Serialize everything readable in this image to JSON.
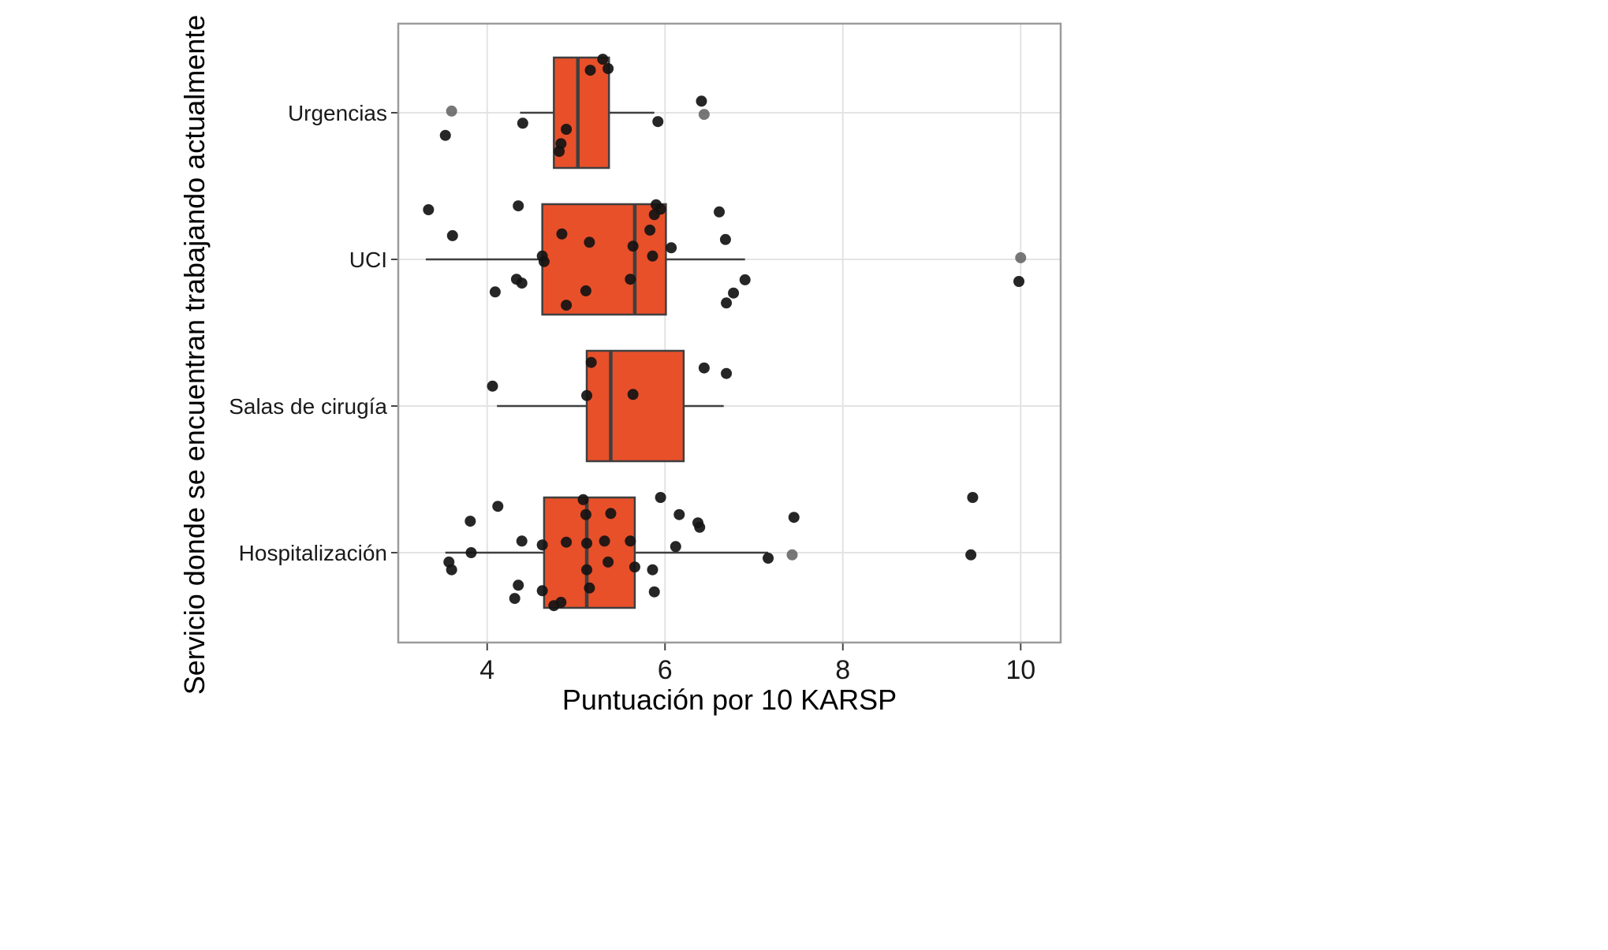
{
  "chart_data": {
    "type": "boxplot",
    "orientation": "horizontal",
    "title": "",
    "xlabel": "Puntuación por 10 KARSP",
    "ylabel": "Servicio donde se encuentran trabajando actualmente",
    "xlim": [
      3.0,
      10.45
    ],
    "xticks": [
      4,
      6,
      8,
      10
    ],
    "grid": true,
    "legend": false,
    "colors": {
      "box_fill": "#E8502A",
      "box_stroke": "#3f3f3f",
      "point": "#141414",
      "point_muted": "#5f5f5f",
      "grid": "#e3e3e3",
      "panel_border": "#9b9b9b",
      "tick": "#444444",
      "text": "#1a1a1a"
    },
    "categories": [
      {
        "name": "Urgencias",
        "stats": {
          "whisker_low": 4.37,
          "q1": 4.75,
          "median": 5.02,
          "q3": 5.37,
          "whisker_high": 5.88
        },
        "points": [
          [
            5.3,
            -0.97
          ],
          [
            5.16,
            -0.77
          ],
          [
            5.36,
            -0.8
          ],
          [
            6.41,
            -0.21
          ],
          [
            6.44,
            0.03,
            "m"
          ],
          [
            3.6,
            -0.03,
            "m"
          ],
          [
            3.53,
            0.41
          ],
          [
            4.4,
            0.19
          ],
          [
            5.92,
            0.16
          ],
          [
            4.83,
            0.56
          ],
          [
            4.89,
            0.3
          ],
          [
            4.81,
            0.7
          ]
        ]
      },
      {
        "name": "UCI",
        "stats": {
          "whisker_low": 3.31,
          "q1": 4.62,
          "median": 5.66,
          "q3": 6.01,
          "whisker_high": 6.9
        },
        "points": [
          [
            3.34,
            -0.9
          ],
          [
            3.61,
            -0.43
          ],
          [
            4.35,
            -0.97
          ],
          [
            4.09,
            0.59
          ],
          [
            4.33,
            0.36
          ],
          [
            4.39,
            0.43
          ],
          [
            4.62,
            -0.06
          ],
          [
            4.64,
            0.04
          ],
          [
            4.84,
            -0.46
          ],
          [
            4.89,
            0.83
          ],
          [
            5.11,
            0.57
          ],
          [
            5.15,
            -0.31
          ],
          [
            5.61,
            0.36
          ],
          [
            5.64,
            -0.24
          ],
          [
            5.83,
            -0.53
          ],
          [
            5.86,
            -0.06
          ],
          [
            5.88,
            -0.81
          ],
          [
            5.9,
            -0.99
          ],
          [
            5.95,
            -0.91
          ],
          [
            6.07,
            -0.21
          ],
          [
            6.61,
            -0.86
          ],
          [
            6.68,
            -0.36
          ],
          [
            6.77,
            0.61
          ],
          [
            6.69,
            0.79
          ],
          [
            6.9,
            0.37
          ],
          [
            10.0,
            -0.03,
            "m"
          ],
          [
            9.98,
            0.4
          ]
        ]
      },
      {
        "name": "Salas de cirugía",
        "stats": {
          "whisker_low": 4.11,
          "q1": 5.12,
          "median": 5.39,
          "q3": 6.21,
          "whisker_high": 6.66
        },
        "points": [
          [
            4.06,
            -0.36
          ],
          [
            5.17,
            -0.79
          ],
          [
            5.12,
            -0.19
          ],
          [
            5.64,
            -0.21
          ],
          [
            6.44,
            -0.69
          ],
          [
            6.69,
            -0.59
          ]
        ]
      },
      {
        "name": "Hospitalización",
        "stats": {
          "whisker_low": 3.53,
          "q1": 4.64,
          "median": 5.12,
          "q3": 5.66,
          "whisker_high": 7.16
        },
        "points": [
          [
            4.12,
            -0.84
          ],
          [
            3.81,
            -0.57
          ],
          [
            3.82,
            0.0
          ],
          [
            3.57,
            0.17
          ],
          [
            3.6,
            0.31
          ],
          [
            4.31,
            0.83
          ],
          [
            4.35,
            0.59
          ],
          [
            4.39,
            -0.21
          ],
          [
            4.62,
            -0.14
          ],
          [
            4.62,
            0.69
          ],
          [
            4.75,
            0.96
          ],
          [
            4.83,
            0.9
          ],
          [
            4.89,
            -0.19
          ],
          [
            5.08,
            -0.96
          ],
          [
            5.11,
            -0.69
          ],
          [
            5.12,
            -0.17
          ],
          [
            5.12,
            0.31
          ],
          [
            5.15,
            0.64
          ],
          [
            5.32,
            -0.21
          ],
          [
            5.36,
            0.17
          ],
          [
            5.39,
            -0.71
          ],
          [
            5.61,
            -0.21
          ],
          [
            5.66,
            0.26
          ],
          [
            5.86,
            0.31
          ],
          [
            5.88,
            0.71
          ],
          [
            5.95,
            -1.0
          ],
          [
            6.12,
            -0.11
          ],
          [
            6.16,
            -0.69
          ],
          [
            6.37,
            -0.54
          ],
          [
            6.39,
            -0.46
          ],
          [
            7.16,
            0.1
          ],
          [
            7.43,
            0.04,
            "m"
          ],
          [
            7.45,
            -0.64
          ],
          [
            9.46,
            -1.0
          ],
          [
            9.44,
            0.04
          ]
        ]
      }
    ]
  }
}
